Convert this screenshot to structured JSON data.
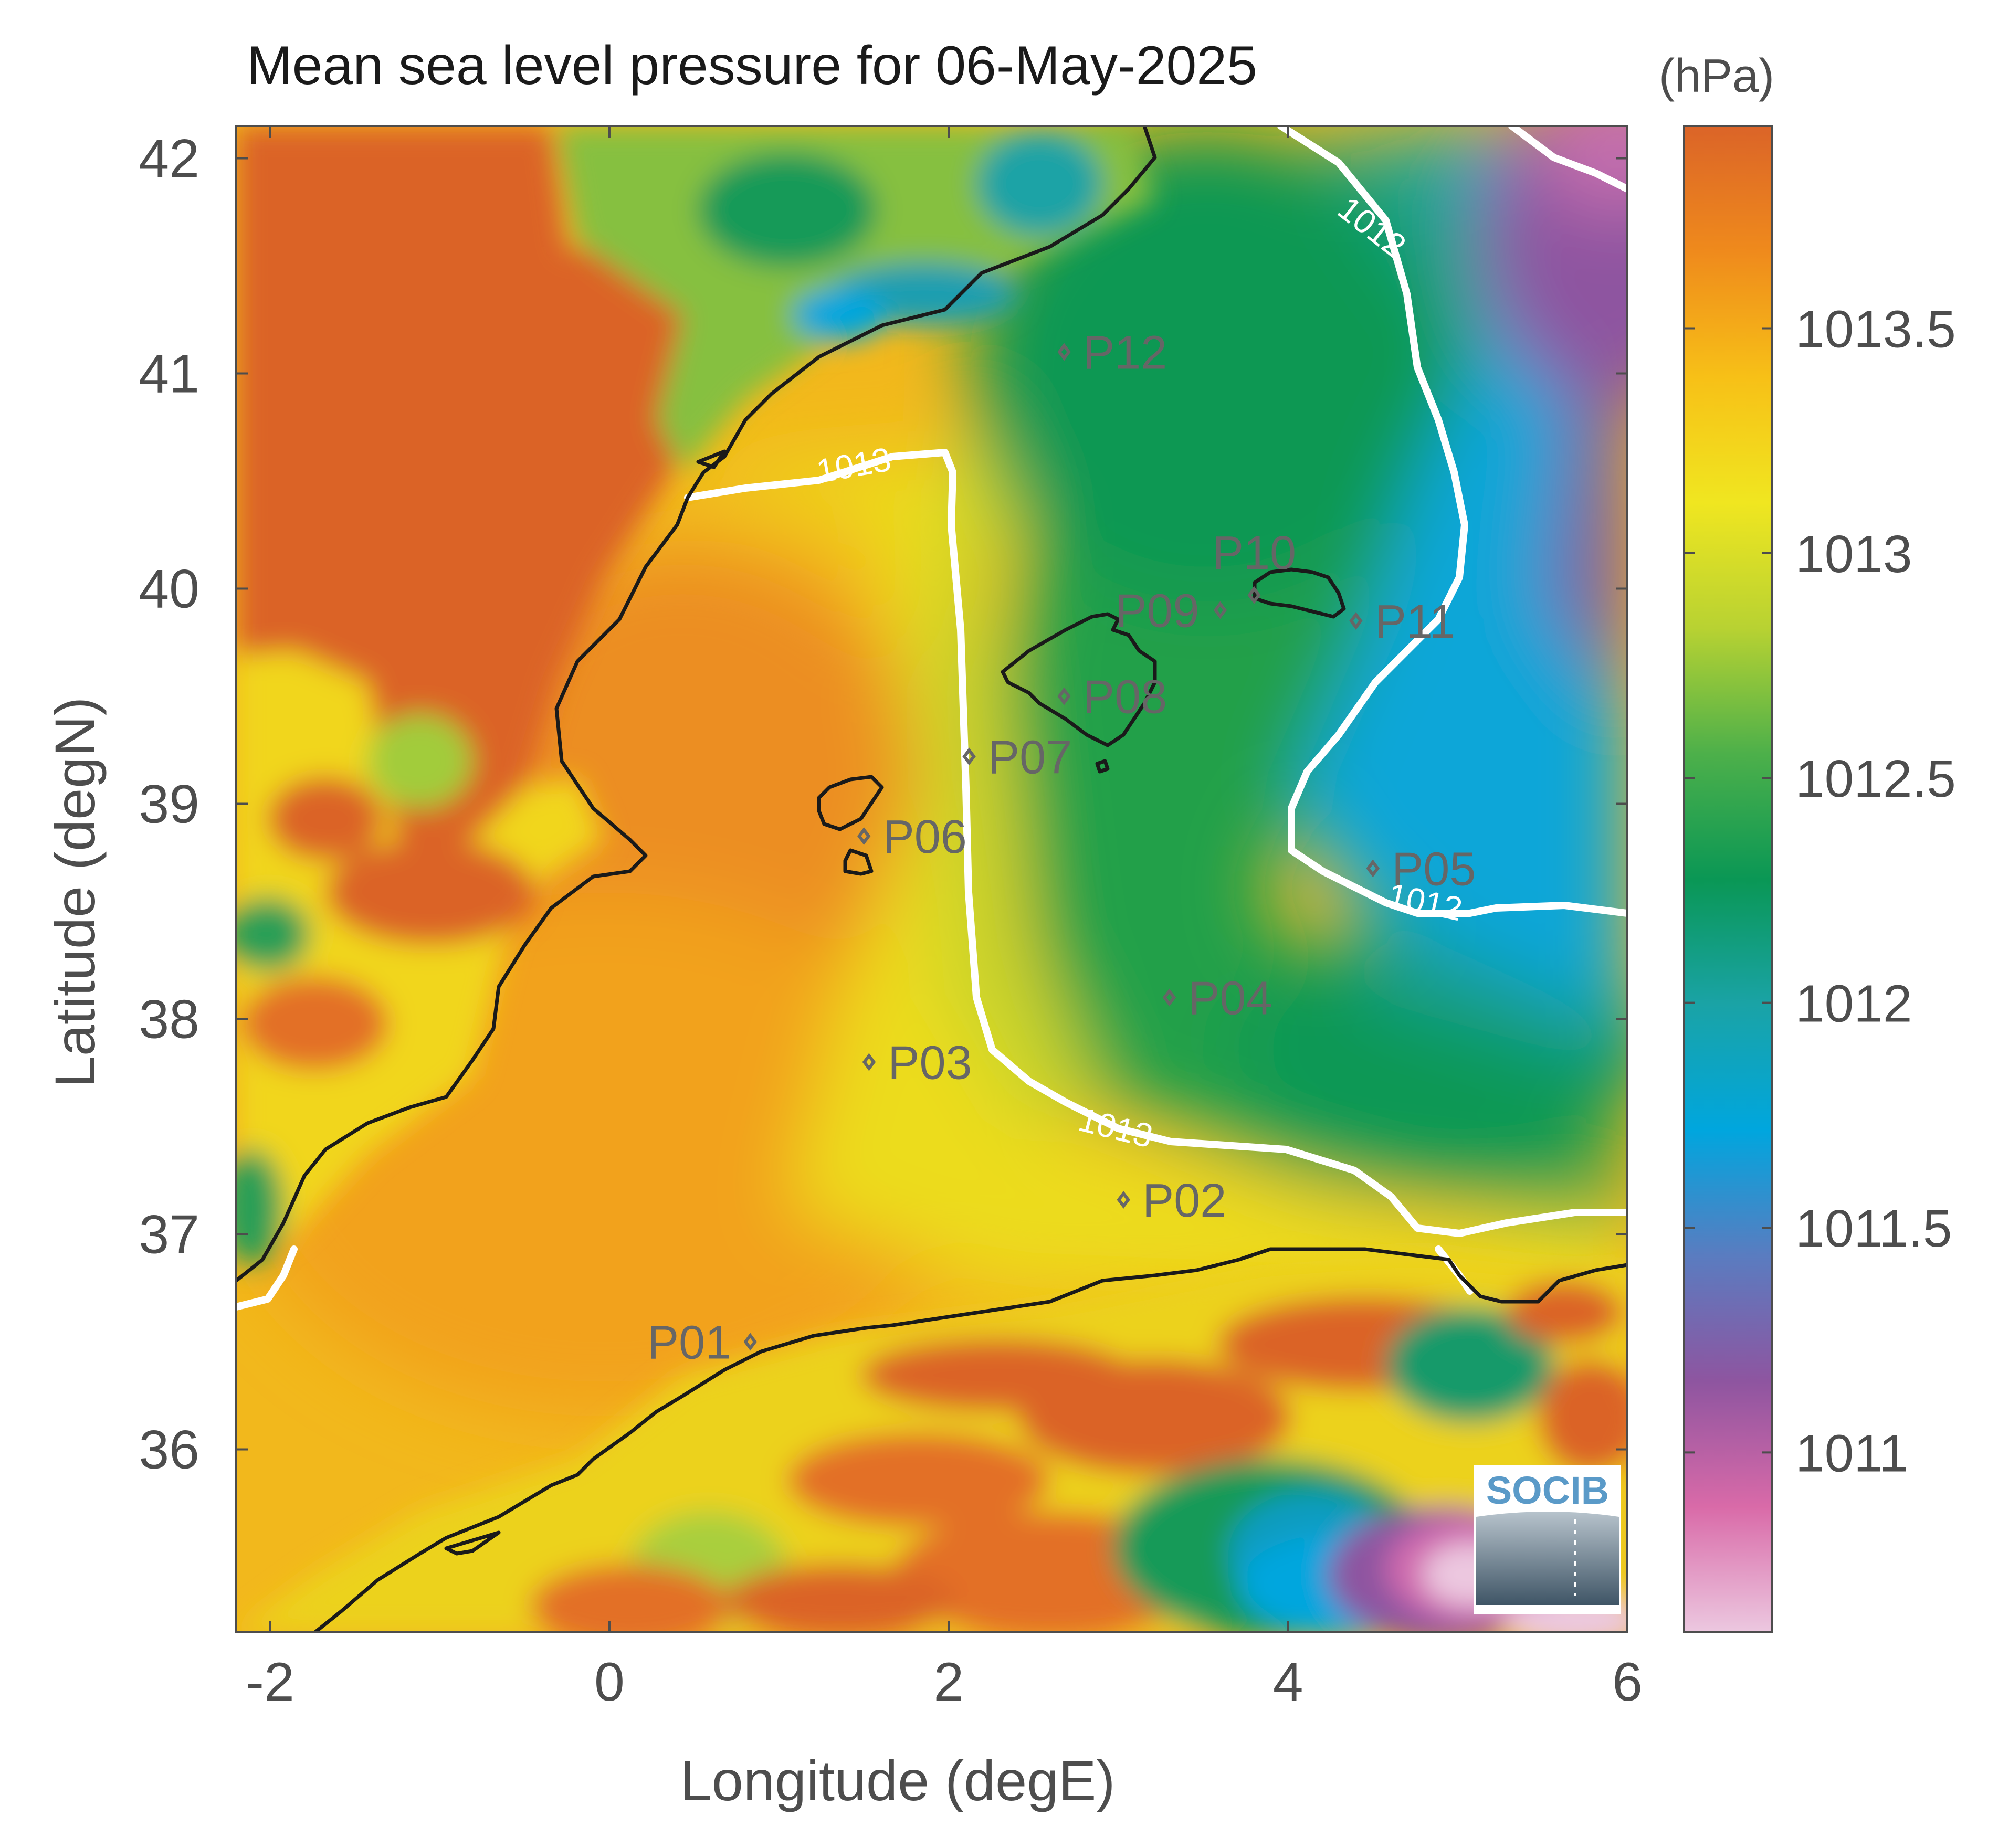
{
  "title": "Mean sea level pressure for 06-May-2025",
  "units_label": "(hPa)",
  "xlabel": "Longitude (degE)",
  "ylabel": "Latitude (degN)",
  "xticks": [
    -2,
    0,
    2,
    4,
    6
  ],
  "xtick_labels": [
    "-2",
    "0",
    "2",
    "4",
    "6"
  ],
  "yticks": [
    36,
    37,
    38,
    39,
    40,
    41,
    42
  ],
  "ytick_labels": [
    "36",
    "37",
    "38",
    "39",
    "40",
    "41",
    "42"
  ],
  "xlim": [
    -2.2,
    6
  ],
  "ylim": [
    35.15,
    42.15
  ],
  "colorbar": {
    "range": [
      1010.6,
      1013.95
    ],
    "ticks": [
      1011,
      1011.5,
      1012,
      1012.5,
      1013,
      1013.5
    ],
    "tick_labels": [
      "1011",
      "1011.5",
      "1012",
      "1012.5",
      "1013",
      "1013.5"
    ],
    "colormap": [
      "#ecc8e0",
      "#d96aa8",
      "#8e55a0",
      "#5a7cc0",
      "#00a6de",
      "#1aa3a6",
      "#0a9755",
      "#4db04a",
      "#b8d232",
      "#f0e620",
      "#f7c017",
      "#ef8a1c",
      "#db6428"
    ]
  },
  "contours": [
    {
      "level": 1012,
      "label": "1012"
    },
    {
      "level": 1013,
      "label": "1013"
    }
  ],
  "points": [
    {
      "name": "P01",
      "lon": 0.83,
      "lat": 36.5
    },
    {
      "name": "P02",
      "lon": 3.03,
      "lat": 37.16
    },
    {
      "name": "P03",
      "lon": 1.53,
      "lat": 37.8
    },
    {
      "name": "P04",
      "lon": 3.3,
      "lat": 38.1
    },
    {
      "name": "P05",
      "lon": 4.5,
      "lat": 38.7
    },
    {
      "name": "P06",
      "lon": 1.5,
      "lat": 38.85
    },
    {
      "name": "P07",
      "lon": 2.12,
      "lat": 39.22
    },
    {
      "name": "P08",
      "lon": 2.68,
      "lat": 39.5
    },
    {
      "name": "P09",
      "lon": 3.6,
      "lat": 39.9
    },
    {
      "name": "P10",
      "lon": 3.8,
      "lat": 39.97
    },
    {
      "name": "P11",
      "lon": 4.4,
      "lat": 39.85
    },
    {
      "name": "P12",
      "lon": 2.68,
      "lat": 41.1
    }
  ],
  "logo": {
    "text": "SOCIB"
  }
}
